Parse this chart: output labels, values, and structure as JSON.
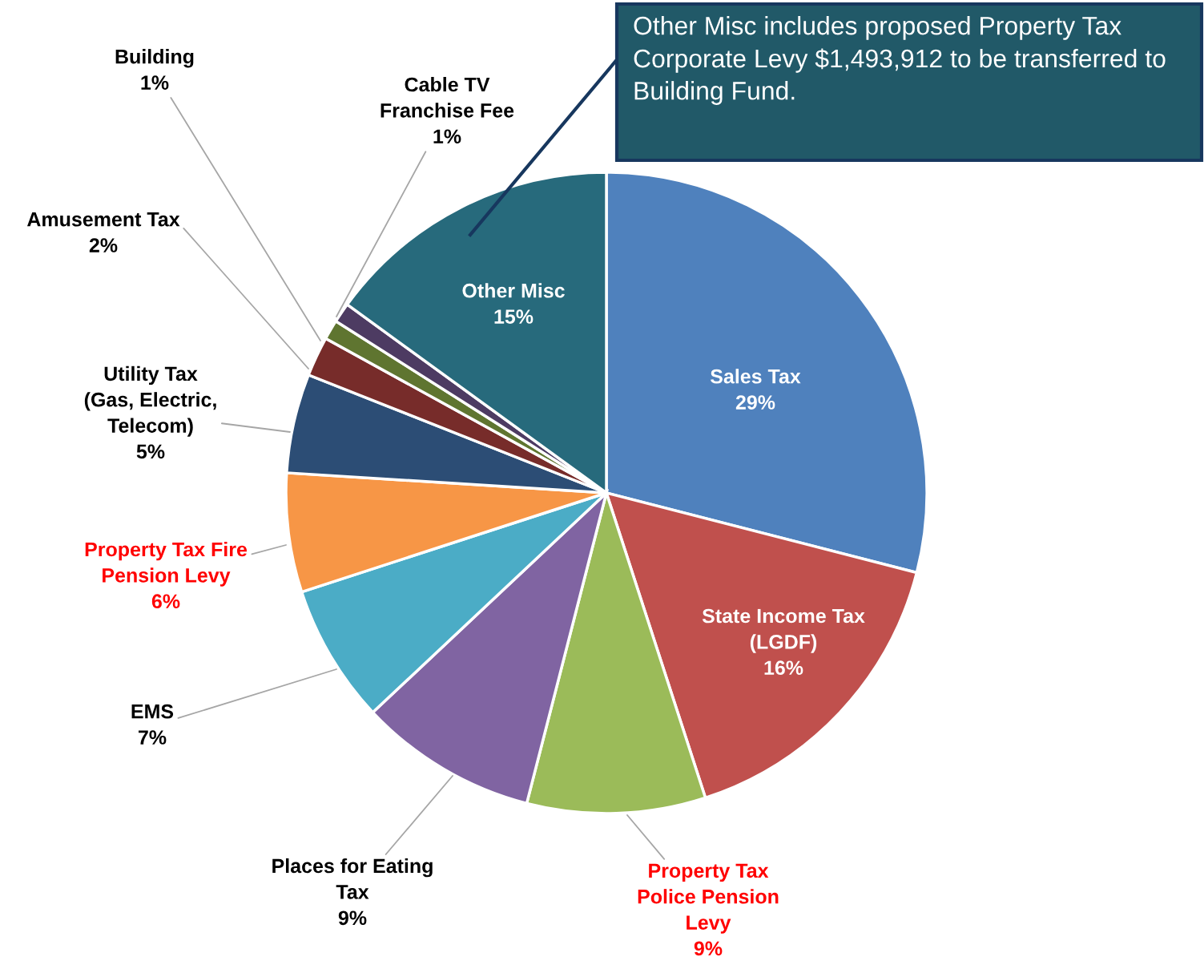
{
  "chart_data": {
    "type": "pie",
    "categories": [
      "Sales Tax",
      "State Income Tax\n(LGDF)",
      "Property Tax\nPolice Pension\nLevy",
      "Places for Eating\nTax",
      "EMS",
      "Property Tax Fire\nPension Levy",
      "Utility Tax\n(Gas, Electric,\nTelecom)",
      "Amusement Tax",
      "Building",
      "Cable TV\nFranchise Fee",
      "Other Misc"
    ],
    "values": [
      29,
      16,
      9,
      9,
      7,
      6,
      5,
      2,
      1,
      1,
      15
    ],
    "value_labels": [
      "29%",
      "16%",
      "9%",
      "9%",
      "7%",
      "6%",
      "5%",
      "2%",
      "1%",
      "1%",
      "15%"
    ],
    "colors": [
      "#4f81bd",
      "#c0504d",
      "#9bbb59",
      "#8064a2",
      "#4bacc6",
      "#f79646",
      "#2c4d75",
      "#772c2a",
      "#5f7530",
      "#4d3b62",
      "#276a7c"
    ],
    "legend": false,
    "annotations": [
      "Other Misc includes proposed Property Tax Corporate Levy $1,493,912 to be transferred to Building Fund."
    ]
  }
}
